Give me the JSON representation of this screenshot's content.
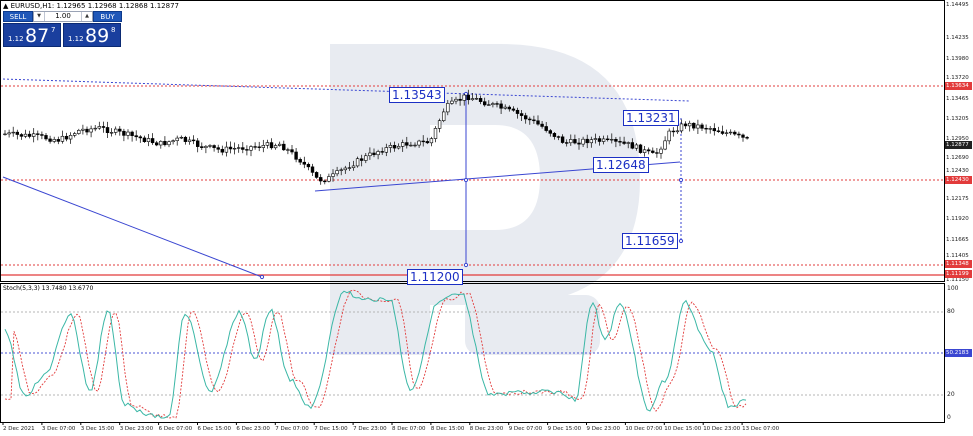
{
  "header": {
    "symbol": "EURUSD,H1",
    "ohlc": "1.12965 1.12968 1.12868 1.12877"
  },
  "trade_panel": {
    "sell_label": "SELL",
    "buy_label": "BUY",
    "lot": "1.00",
    "sell_pre": "1.12",
    "sell_big": "87",
    "sell_sup": "7",
    "buy_pre": "1.12",
    "buy_big": "89",
    "buy_sup": "8"
  },
  "annotations": [
    "1.13543",
    "1.13231",
    "1.12648",
    "1.11659",
    "1.11200"
  ],
  "price_axis": {
    "ticks": [
      "1.14495",
      "1.14235",
      "1.13980",
      "1.13720",
      "1.13465",
      "1.13205",
      "1.12950",
      "1.12690",
      "1.12430",
      "1.12175",
      "1.11920",
      "1.11665",
      "1.11405",
      "1.11150"
    ],
    "badges": [
      {
        "label": "1.13634",
        "color": "#e23b3b"
      },
      {
        "label": "1.12877",
        "color": "#222222"
      },
      {
        "label": "1.12430",
        "color": "#e23b3b"
      },
      {
        "label": "1.11348",
        "color": "#e23b3b"
      },
      {
        "label": "1.11199",
        "color": "#e23b3b"
      }
    ]
  },
  "stoch": {
    "label": "Stoch(5,3,3) 13.7480 13.6770",
    "ticks": [
      "100",
      "80",
      "20",
      "0"
    ],
    "badge": "50.2183",
    "main_color": "#3bb7a6",
    "signal_color": "#e23b3b"
  },
  "time_axis": [
    "2 Dec 2021",
    "3 Dec 07:00",
    "3 Dec 15:00",
    "3 Dec 23:00",
    "6 Dec 07:00",
    "6 Dec 15:00",
    "6 Dec 23:00",
    "7 Dec 07:00",
    "7 Dec 15:00",
    "7 Dec 23:00",
    "8 Dec 07:00",
    "8 Dec 15:00",
    "8 Dec 23:00",
    "9 Dec 07:00",
    "9 Dec 15:00",
    "9 Dec 23:00",
    "10 Dec 07:00",
    "10 Dec 15:00",
    "10 Dec 23:00",
    "13 Dec 07:00"
  ]
}
